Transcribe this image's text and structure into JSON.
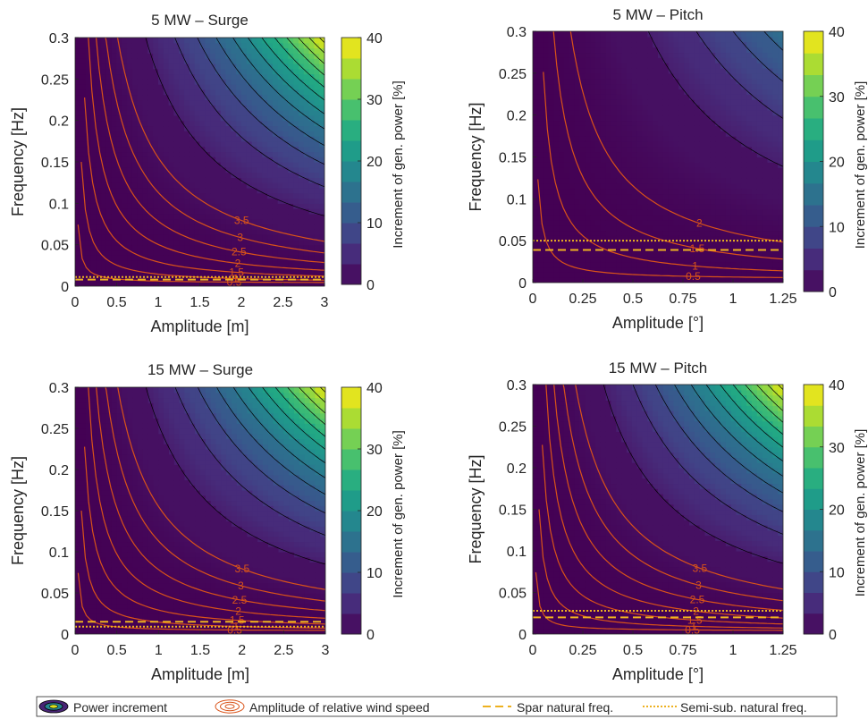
{
  "figure": {
    "colorbar_label": "Increment of gen. power [%]",
    "colorbar_ticks": [
      0,
      10,
      20,
      30,
      40
    ],
    "y_ticks": [
      0,
      0.05,
      0.1,
      0.15,
      0.2,
      0.25,
      0.3
    ],
    "y_tick_labels": [
      "0",
      "0.05",
      "0.1",
      "0.15",
      "0.2",
      "0.25",
      "0.3"
    ],
    "ylabel": "Frequency [Hz]",
    "colors": {
      "spar_line": "#edb120",
      "semisub_line": "#edb120",
      "wind_contour": "#d95319",
      "power_contour": "#000000"
    }
  },
  "legend": {
    "items": [
      {
        "icon": "power-increment-icon",
        "label": "Power increment"
      },
      {
        "icon": "relative-wind-speed-icon",
        "label": "Amplitude of relative wind speed"
      },
      {
        "icon": "dashed-line-icon",
        "label": "Spar natural freq."
      },
      {
        "icon": "dotted-line-icon",
        "label": "Semi-sub. natural freq."
      }
    ]
  },
  "chart_data": [
    {
      "type": "heatmap",
      "title": "5 MW – Surge",
      "xlabel": "Amplitude [m]",
      "ylabel": "Frequency [Hz]",
      "xlim": [
        0,
        3
      ],
      "ylim": [
        0,
        0.3
      ],
      "x_ticks": [
        0,
        0.5,
        1,
        1.5,
        2,
        2.5,
        3
      ],
      "x_tick_labels": [
        "0",
        "0.5",
        "1",
        "1.5",
        "2",
        "2.5",
        "3"
      ],
      "clim": [
        0,
        40
      ],
      "power_increment_max": 40,
      "power_increment_model": "proportional to (amplitude × frequency)^2",
      "wind_speed_contour_levels": [
        0.5,
        1,
        1.5,
        2,
        2.5,
        3,
        3.5
      ],
      "wind_speed_contour_labels": [
        "0.5",
        "1",
        "1.5",
        "2",
        "2.5",
        "3",
        "3.5"
      ],
      "spar_natural_freq": 0.008,
      "semisub_natural_freq": 0.011
    },
    {
      "type": "heatmap",
      "title": "5 MW – Pitch",
      "xlabel": "Amplitude [°]",
      "ylabel": "Frequency [Hz]",
      "xlim": [
        0,
        1.25
      ],
      "ylim": [
        0,
        0.3
      ],
      "x_ticks": [
        0,
        0.25,
        0.5,
        0.75,
        1,
        1.25
      ],
      "x_tick_labels": [
        "0",
        "0.25",
        "0.5",
        "0.75",
        "1",
        "1.25"
      ],
      "clim": [
        0,
        40
      ],
      "power_increment_max": 15,
      "power_increment_model": "proportional to (amplitude × frequency)^2",
      "wind_speed_contour_levels": [
        0.5,
        1,
        1.5,
        2
      ],
      "wind_speed_contour_labels": [
        "0.5",
        "1",
        "1.5",
        "2"
      ],
      "spar_natural_freq": 0.039,
      "semisub_natural_freq": 0.05
    },
    {
      "type": "heatmap",
      "title": "15 MW – Surge",
      "xlabel": "Amplitude [m]",
      "ylabel": "Frequency [Hz]",
      "xlim": [
        0,
        3
      ],
      "ylim": [
        0,
        0.3
      ],
      "x_ticks": [
        0,
        0.5,
        1,
        1.5,
        2,
        2.5,
        3
      ],
      "x_tick_labels": [
        "0",
        "0.5",
        "1",
        "1.5",
        "2",
        "2.5",
        "3"
      ],
      "clim": [
        0,
        40
      ],
      "power_increment_max": 40,
      "power_increment_model": "proportional to (amplitude × frequency)^2",
      "wind_speed_contour_levels": [
        0.5,
        1,
        1.5,
        2,
        2.5,
        3,
        3.5
      ],
      "wind_speed_contour_labels": [
        "0.5",
        "1",
        "1.5",
        "2",
        "2.5",
        "3",
        "3.5"
      ],
      "spar_natural_freq": 0.015,
      "semisub_natural_freq": 0.009
    },
    {
      "type": "heatmap",
      "title": "15 MW – Pitch",
      "xlabel": "Amplitude [°]",
      "ylabel": "Frequency [Hz]",
      "xlim": [
        0,
        1.25
      ],
      "ylim": [
        0,
        0.3
      ],
      "x_ticks": [
        0,
        0.25,
        0.5,
        0.75,
        1,
        1.25
      ],
      "x_tick_labels": [
        "0",
        "0.25",
        "0.5",
        "0.75",
        "1",
        "1.25"
      ],
      "clim": [
        0,
        40
      ],
      "power_increment_max": 40,
      "power_increment_model": "proportional to (amplitude × frequency)^2",
      "wind_speed_contour_levels": [
        0.5,
        1,
        1.5,
        2,
        2.5,
        3,
        3.5
      ],
      "wind_speed_contour_labels": [
        "0.5",
        "1",
        "1.5",
        "2",
        "2.5",
        "3",
        "3.5"
      ],
      "spar_natural_freq": 0.02,
      "semisub_natural_freq": 0.028
    }
  ]
}
